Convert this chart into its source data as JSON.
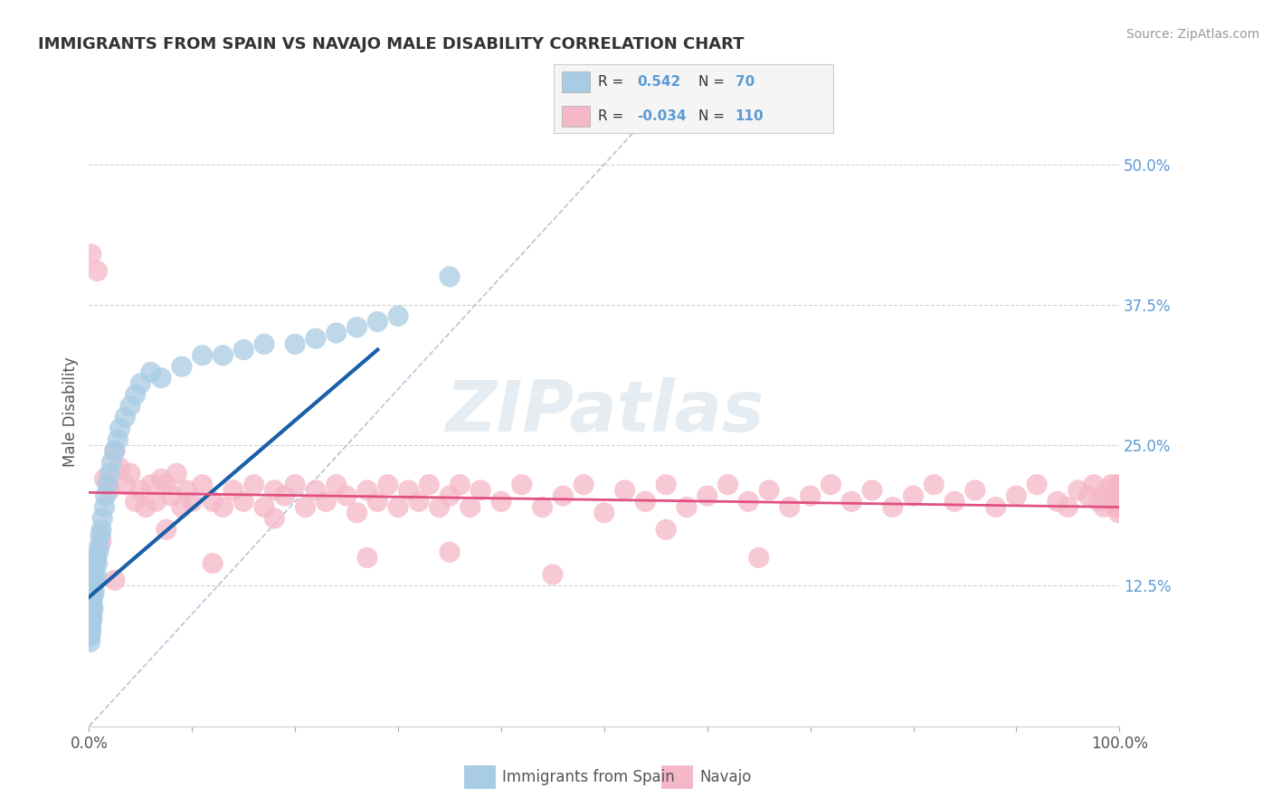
{
  "title": "IMMIGRANTS FROM SPAIN VS NAVAJO MALE DISABILITY CORRELATION CHART",
  "source_text": "Source: ZipAtlas.com",
  "ylabel": "Male Disability",
  "xlim": [
    0.0,
    1.0
  ],
  "ylim": [
    0.0,
    0.56
  ],
  "ytick_positions": [
    0.125,
    0.25,
    0.375,
    0.5
  ],
  "ytick_labels": [
    "12.5%",
    "25.0%",
    "37.5%",
    "50.0%"
  ],
  "blue_color": "#a8cce4",
  "pink_color": "#f5b8c8",
  "trend_blue": "#1a5fa8",
  "trend_pink": "#e05080",
  "dashed_color": "#a0b8d0",
  "background_color": "#ffffff",
  "grid_color": "#cccccc",
  "blue_r": "0.542",
  "blue_n": "70",
  "pink_r": "-0.034",
  "pink_n": "110",
  "blue_scatter_x": [
    0.001,
    0.001,
    0.001,
    0.001,
    0.001,
    0.001,
    0.001,
    0.001,
    0.001,
    0.001,
    0.001,
    0.002,
    0.002,
    0.002,
    0.002,
    0.002,
    0.002,
    0.002,
    0.002,
    0.002,
    0.003,
    0.003,
    0.003,
    0.003,
    0.003,
    0.003,
    0.003,
    0.004,
    0.004,
    0.004,
    0.004,
    0.005,
    0.005,
    0.005,
    0.006,
    0.006,
    0.007,
    0.007,
    0.008,
    0.009,
    0.01,
    0.011,
    0.012,
    0.013,
    0.015,
    0.016,
    0.018,
    0.02,
    0.022,
    0.025,
    0.028,
    0.03,
    0.035,
    0.04,
    0.045,
    0.05,
    0.06,
    0.07,
    0.09,
    0.11,
    0.13,
    0.15,
    0.17,
    0.2,
    0.22,
    0.24,
    0.26,
    0.28,
    0.3,
    0.35
  ],
  "blue_scatter_y": [
    0.075,
    0.08,
    0.082,
    0.085,
    0.088,
    0.09,
    0.092,
    0.095,
    0.098,
    0.1,
    0.105,
    0.085,
    0.09,
    0.095,
    0.1,
    0.105,
    0.11,
    0.115,
    0.12,
    0.125,
    0.095,
    0.1,
    0.11,
    0.115,
    0.12,
    0.125,
    0.13,
    0.105,
    0.115,
    0.125,
    0.135,
    0.12,
    0.13,
    0.14,
    0.13,
    0.145,
    0.135,
    0.15,
    0.145,
    0.155,
    0.16,
    0.17,
    0.175,
    0.185,
    0.195,
    0.205,
    0.215,
    0.225,
    0.235,
    0.245,
    0.255,
    0.265,
    0.275,
    0.285,
    0.295,
    0.305,
    0.315,
    0.31,
    0.32,
    0.33,
    0.33,
    0.335,
    0.34,
    0.34,
    0.345,
    0.35,
    0.355,
    0.36,
    0.365,
    0.4
  ],
  "pink_scatter_x": [
    0.002,
    0.008,
    0.015,
    0.02,
    0.025,
    0.03,
    0.035,
    0.04,
    0.045,
    0.05,
    0.055,
    0.06,
    0.065,
    0.07,
    0.075,
    0.08,
    0.085,
    0.09,
    0.095,
    0.1,
    0.11,
    0.12,
    0.13,
    0.14,
    0.15,
    0.16,
    0.17,
    0.18,
    0.19,
    0.2,
    0.21,
    0.22,
    0.23,
    0.24,
    0.25,
    0.26,
    0.27,
    0.28,
    0.29,
    0.3,
    0.31,
    0.32,
    0.33,
    0.34,
    0.35,
    0.36,
    0.37,
    0.38,
    0.4,
    0.42,
    0.44,
    0.46,
    0.48,
    0.5,
    0.52,
    0.54,
    0.56,
    0.58,
    0.6,
    0.62,
    0.64,
    0.66,
    0.68,
    0.7,
    0.72,
    0.74,
    0.76,
    0.78,
    0.8,
    0.82,
    0.84,
    0.86,
    0.88,
    0.9,
    0.92,
    0.94,
    0.95,
    0.96,
    0.97,
    0.975,
    0.98,
    0.985,
    0.988,
    0.99,
    0.992,
    0.994,
    0.996,
    0.997,
    0.998,
    0.999,
    0.999,
    0.999,
    0.999,
    0.999,
    0.999,
    0.999,
    0.999,
    0.999,
    0.999,
    0.999,
    0.012,
    0.025,
    0.075,
    0.12,
    0.18,
    0.27,
    0.35,
    0.45,
    0.56,
    0.65
  ],
  "pink_scatter_y": [
    0.42,
    0.405,
    0.22,
    0.21,
    0.245,
    0.23,
    0.215,
    0.225,
    0.2,
    0.21,
    0.195,
    0.215,
    0.2,
    0.22,
    0.215,
    0.205,
    0.225,
    0.195,
    0.21,
    0.2,
    0.215,
    0.2,
    0.195,
    0.21,
    0.2,
    0.215,
    0.195,
    0.21,
    0.205,
    0.215,
    0.195,
    0.21,
    0.2,
    0.215,
    0.205,
    0.19,
    0.21,
    0.2,
    0.215,
    0.195,
    0.21,
    0.2,
    0.215,
    0.195,
    0.205,
    0.215,
    0.195,
    0.21,
    0.2,
    0.215,
    0.195,
    0.205,
    0.215,
    0.19,
    0.21,
    0.2,
    0.215,
    0.195,
    0.205,
    0.215,
    0.2,
    0.21,
    0.195,
    0.205,
    0.215,
    0.2,
    0.21,
    0.195,
    0.205,
    0.215,
    0.2,
    0.21,
    0.195,
    0.205,
    0.215,
    0.2,
    0.195,
    0.21,
    0.205,
    0.215,
    0.2,
    0.195,
    0.21,
    0.205,
    0.215,
    0.2,
    0.195,
    0.21,
    0.205,
    0.215,
    0.2,
    0.195,
    0.21,
    0.205,
    0.215,
    0.2,
    0.195,
    0.21,
    0.195,
    0.19,
    0.165,
    0.13,
    0.175,
    0.145,
    0.185,
    0.15,
    0.155,
    0.135,
    0.175,
    0.15
  ]
}
